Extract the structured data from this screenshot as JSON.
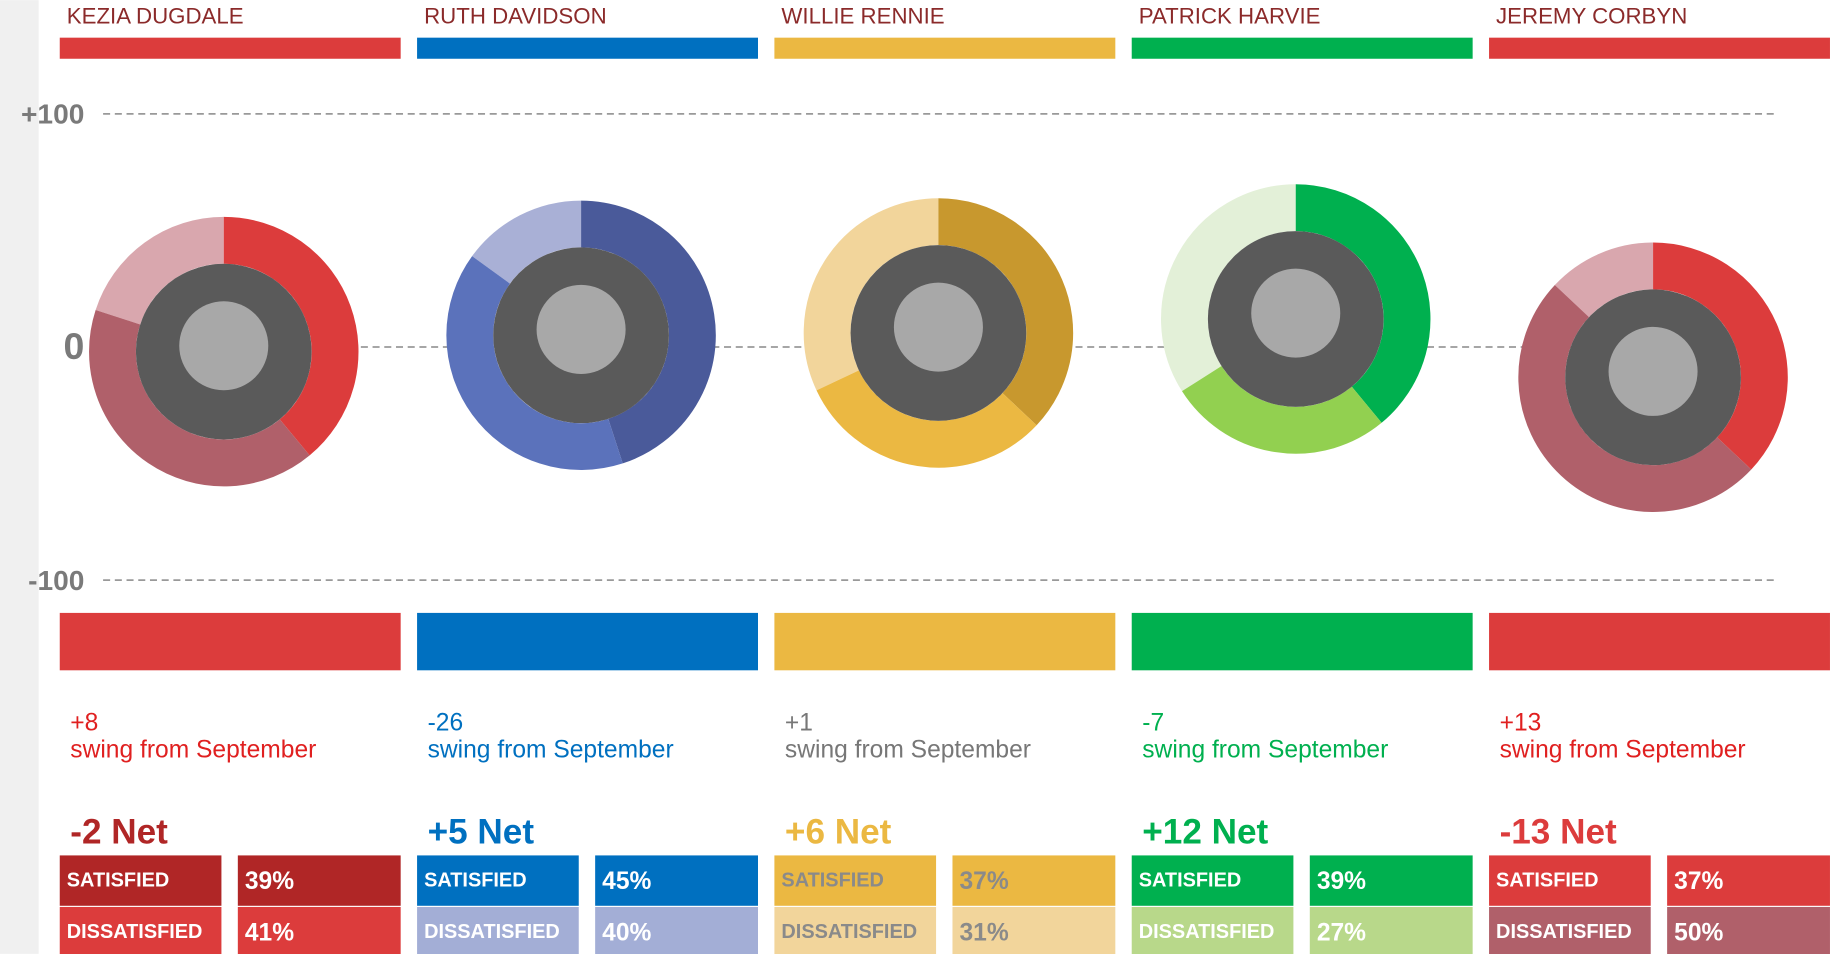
{
  "chart_data": {
    "type": "donut",
    "ylim": [
      -100,
      100
    ],
    "yticks": [
      {
        "value": 100,
        "label": "+100"
      },
      0,
      {
        "value": -100,
        "label": "-100"
      }
    ],
    "grid": true,
    "labels": {
      "satisfied": "SATISFIED",
      "dissatisfied": "DISSATISFIED",
      "swing": "swing from September"
    },
    "series": [
      {
        "name": "KEZIA DUGDALE",
        "color": "#dc3c3c",
        "ring_colors": [
          "#dc3c3c",
          "#b0606a",
          "#d9a7ae"
        ],
        "cell_colors": [
          "#b02626",
          "#dc3c3c"
        ],
        "net_color": "#b02626",
        "swing_color": "#e02020",
        "label_color": "#ffffff",
        "values": [
          39,
          41
        ],
        "value_labels": [
          "39%",
          "41%"
        ],
        "net": -2,
        "net_label": "-2 Net",
        "swing": 8,
        "swing_label": "+8"
      },
      {
        "name": "RUTH DAVIDSON",
        "color": "#0070c0",
        "ring_colors": [
          "#4a5a9a",
          "#5b72bb",
          "#a9b0d6"
        ],
        "cell_colors": [
          "#0070c0",
          "#a3aed6"
        ],
        "net_color": "#0070c0",
        "swing_color": "#0070c0",
        "label_color": "#ffffff",
        "values": [
          45,
          40
        ],
        "value_labels": [
          "45%",
          "40%"
        ],
        "net": 5,
        "net_label": "+5 Net",
        "swing": -26,
        "swing_label": "-26"
      },
      {
        "name": "WILLIE RENNIE",
        "color": "#ebb842",
        "ring_colors": [
          "#c8982e",
          "#ebb842",
          "#f2d59b"
        ],
        "cell_colors": [
          "#ebb842",
          "#f2d59b"
        ],
        "net_color": "#ebb842",
        "swing_color": "#777777",
        "label_color": "#8a8a8a",
        "values": [
          37,
          31
        ],
        "value_labels": [
          "37%",
          "31%"
        ],
        "net": 6,
        "net_label": "+6 Net",
        "swing": 1,
        "swing_label": "+1"
      },
      {
        "name": "PATRICK HARVIE",
        "color": "#00b04f",
        "ring_colors": [
          "#00b04f",
          "#92d050",
          "#e3f0d8"
        ],
        "cell_colors": [
          "#00b04f",
          "#b8d88a"
        ],
        "net_color": "#00b04f",
        "swing_color": "#00b04f",
        "label_color": "#ffffff",
        "values": [
          39,
          27
        ],
        "value_labels": [
          "39%",
          "27%"
        ],
        "net": 12,
        "net_label": "+12 Net",
        "swing": -7,
        "swing_label": "-7"
      },
      {
        "name": "JEREMY CORBYN",
        "color": "#dc3c3c",
        "ring_colors": [
          "#dc3c3c",
          "#b0606a",
          "#d9a7ae"
        ],
        "cell_colors": [
          "#dc3c3c",
          "#b0606a"
        ],
        "net_color": "#dc3c3c",
        "swing_color": "#e02020",
        "label_color": "#ffffff",
        "values": [
          37,
          50
        ],
        "value_labels": [
          "37%",
          "50%"
        ],
        "net": -13,
        "net_label": "-13 Net",
        "swing": 13,
        "swing_label": "+13"
      }
    ]
  }
}
